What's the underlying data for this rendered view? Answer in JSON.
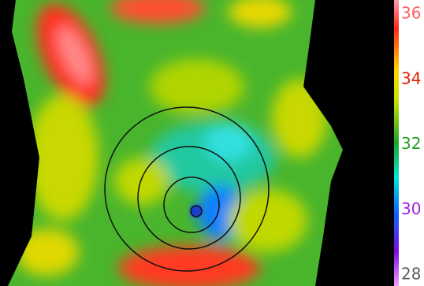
{
  "colorbar": {
    "ticks": [
      36,
      34,
      32,
      30,
      28
    ]
  }
}
